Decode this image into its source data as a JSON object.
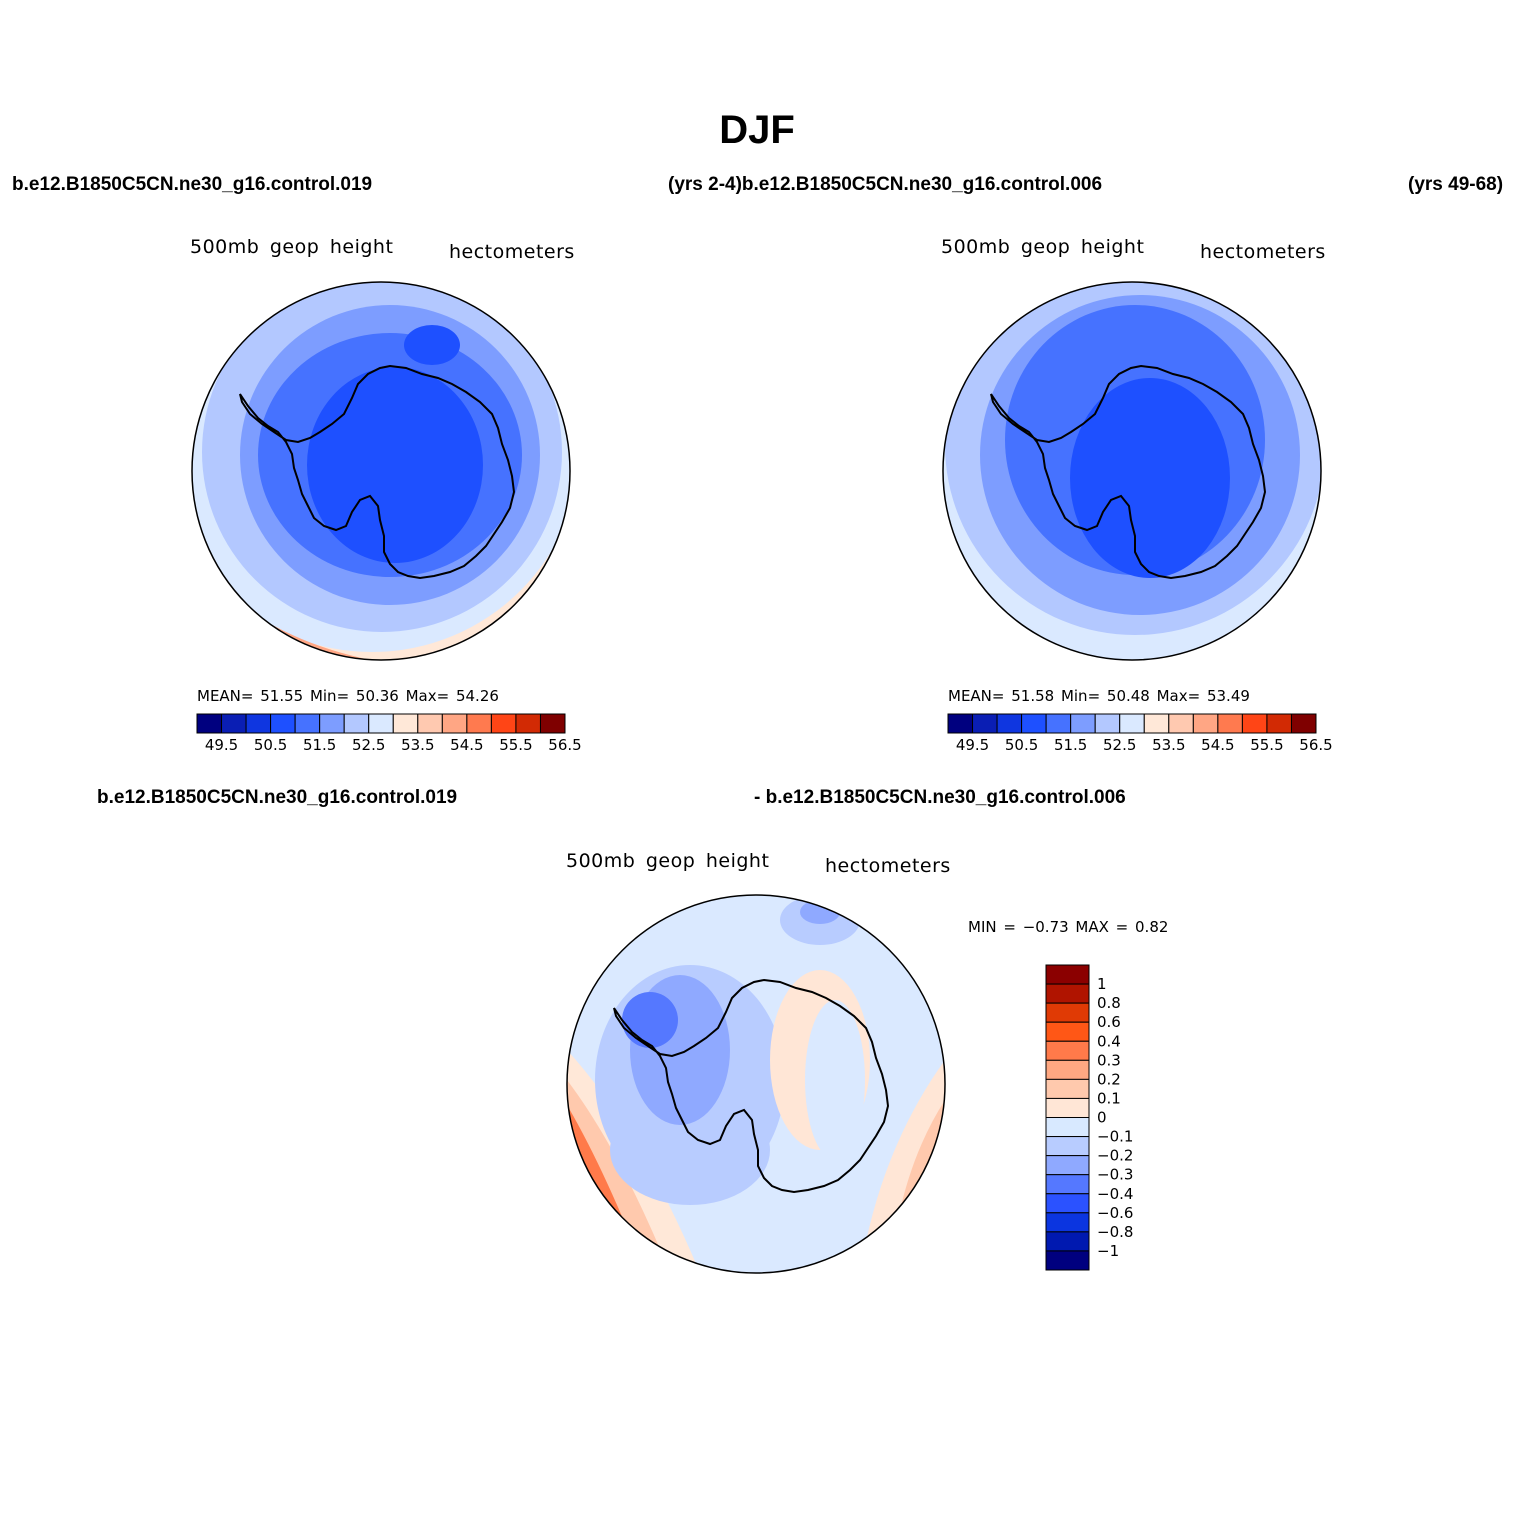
{
  "title": "DJF",
  "case_labels": {
    "top_left": "b.e12.B1850C5CN.ne30_g16.control.019",
    "top_mid": "(yrs 2-4)b.e12.B1850C5CN.ne30_g16.control.006",
    "top_right": "(yrs 49-68)",
    "bottom_left": "b.e12.B1850C5CN.ne30_g16.control.019",
    "bottom_mid": "- b.e12.B1850C5CN.ne30_g16.control.006"
  },
  "panels": [
    {
      "id": "panel1",
      "variable": "500mb  geop  height",
      "units": "hectometers",
      "stats": "MEAN=   51.55   Min=   50.36   Max=   54.26",
      "colorbar_ticks": [
        "49.5",
        "50.5",
        "51.5",
        "52.5",
        "53.5",
        "54.5",
        "55.5",
        "56.5"
      ]
    },
    {
      "id": "panel2",
      "variable": "500mb  geop  height",
      "units": "hectometers",
      "stats": "MEAN=   51.58   Min=   50.48   Max=   53.49",
      "colorbar_ticks": [
        "49.5",
        "50.5",
        "51.5",
        "52.5",
        "53.5",
        "54.5",
        "55.5",
        "56.5"
      ]
    },
    {
      "id": "panel3",
      "variable": "500mb  geop  height",
      "units": "hectometers",
      "stats": "MIN =   −0.73  MAX =    0.82",
      "colorbar_ticks": [
        "1",
        "0.8",
        "0.6",
        "0.4",
        "0.3",
        "0.2",
        "0.1",
        "0",
        "−0.1",
        "−0.2",
        "−0.3",
        "−0.4",
        "−0.6",
        "−0.8",
        "−1"
      ]
    }
  ],
  "colors": {
    "abs_scale": [
      "#00007f",
      "#0a1eb4",
      "#0f36e0",
      "#1e50ff",
      "#4672ff",
      "#7d9dff",
      "#b3c8ff",
      "#dae9ff",
      "#ffe8d8",
      "#ffc9b0",
      "#ffa684",
      "#ff7a4f",
      "#ff4516",
      "#d22a04",
      "#7f0000"
    ],
    "diff_scale": [
      "#8b0000",
      "#b01400",
      "#e03a05",
      "#ff5716",
      "#ff7a4a",
      "#ffa882",
      "#ffc9ad",
      "#ffe6d6",
      "#d8e9ff",
      "#b8ccff",
      "#8fa9ff",
      "#5578ff",
      "#2b52ff",
      "#0b35e0",
      "#0019b0",
      "#00007f"
    ],
    "coast": "#000000"
  }
}
